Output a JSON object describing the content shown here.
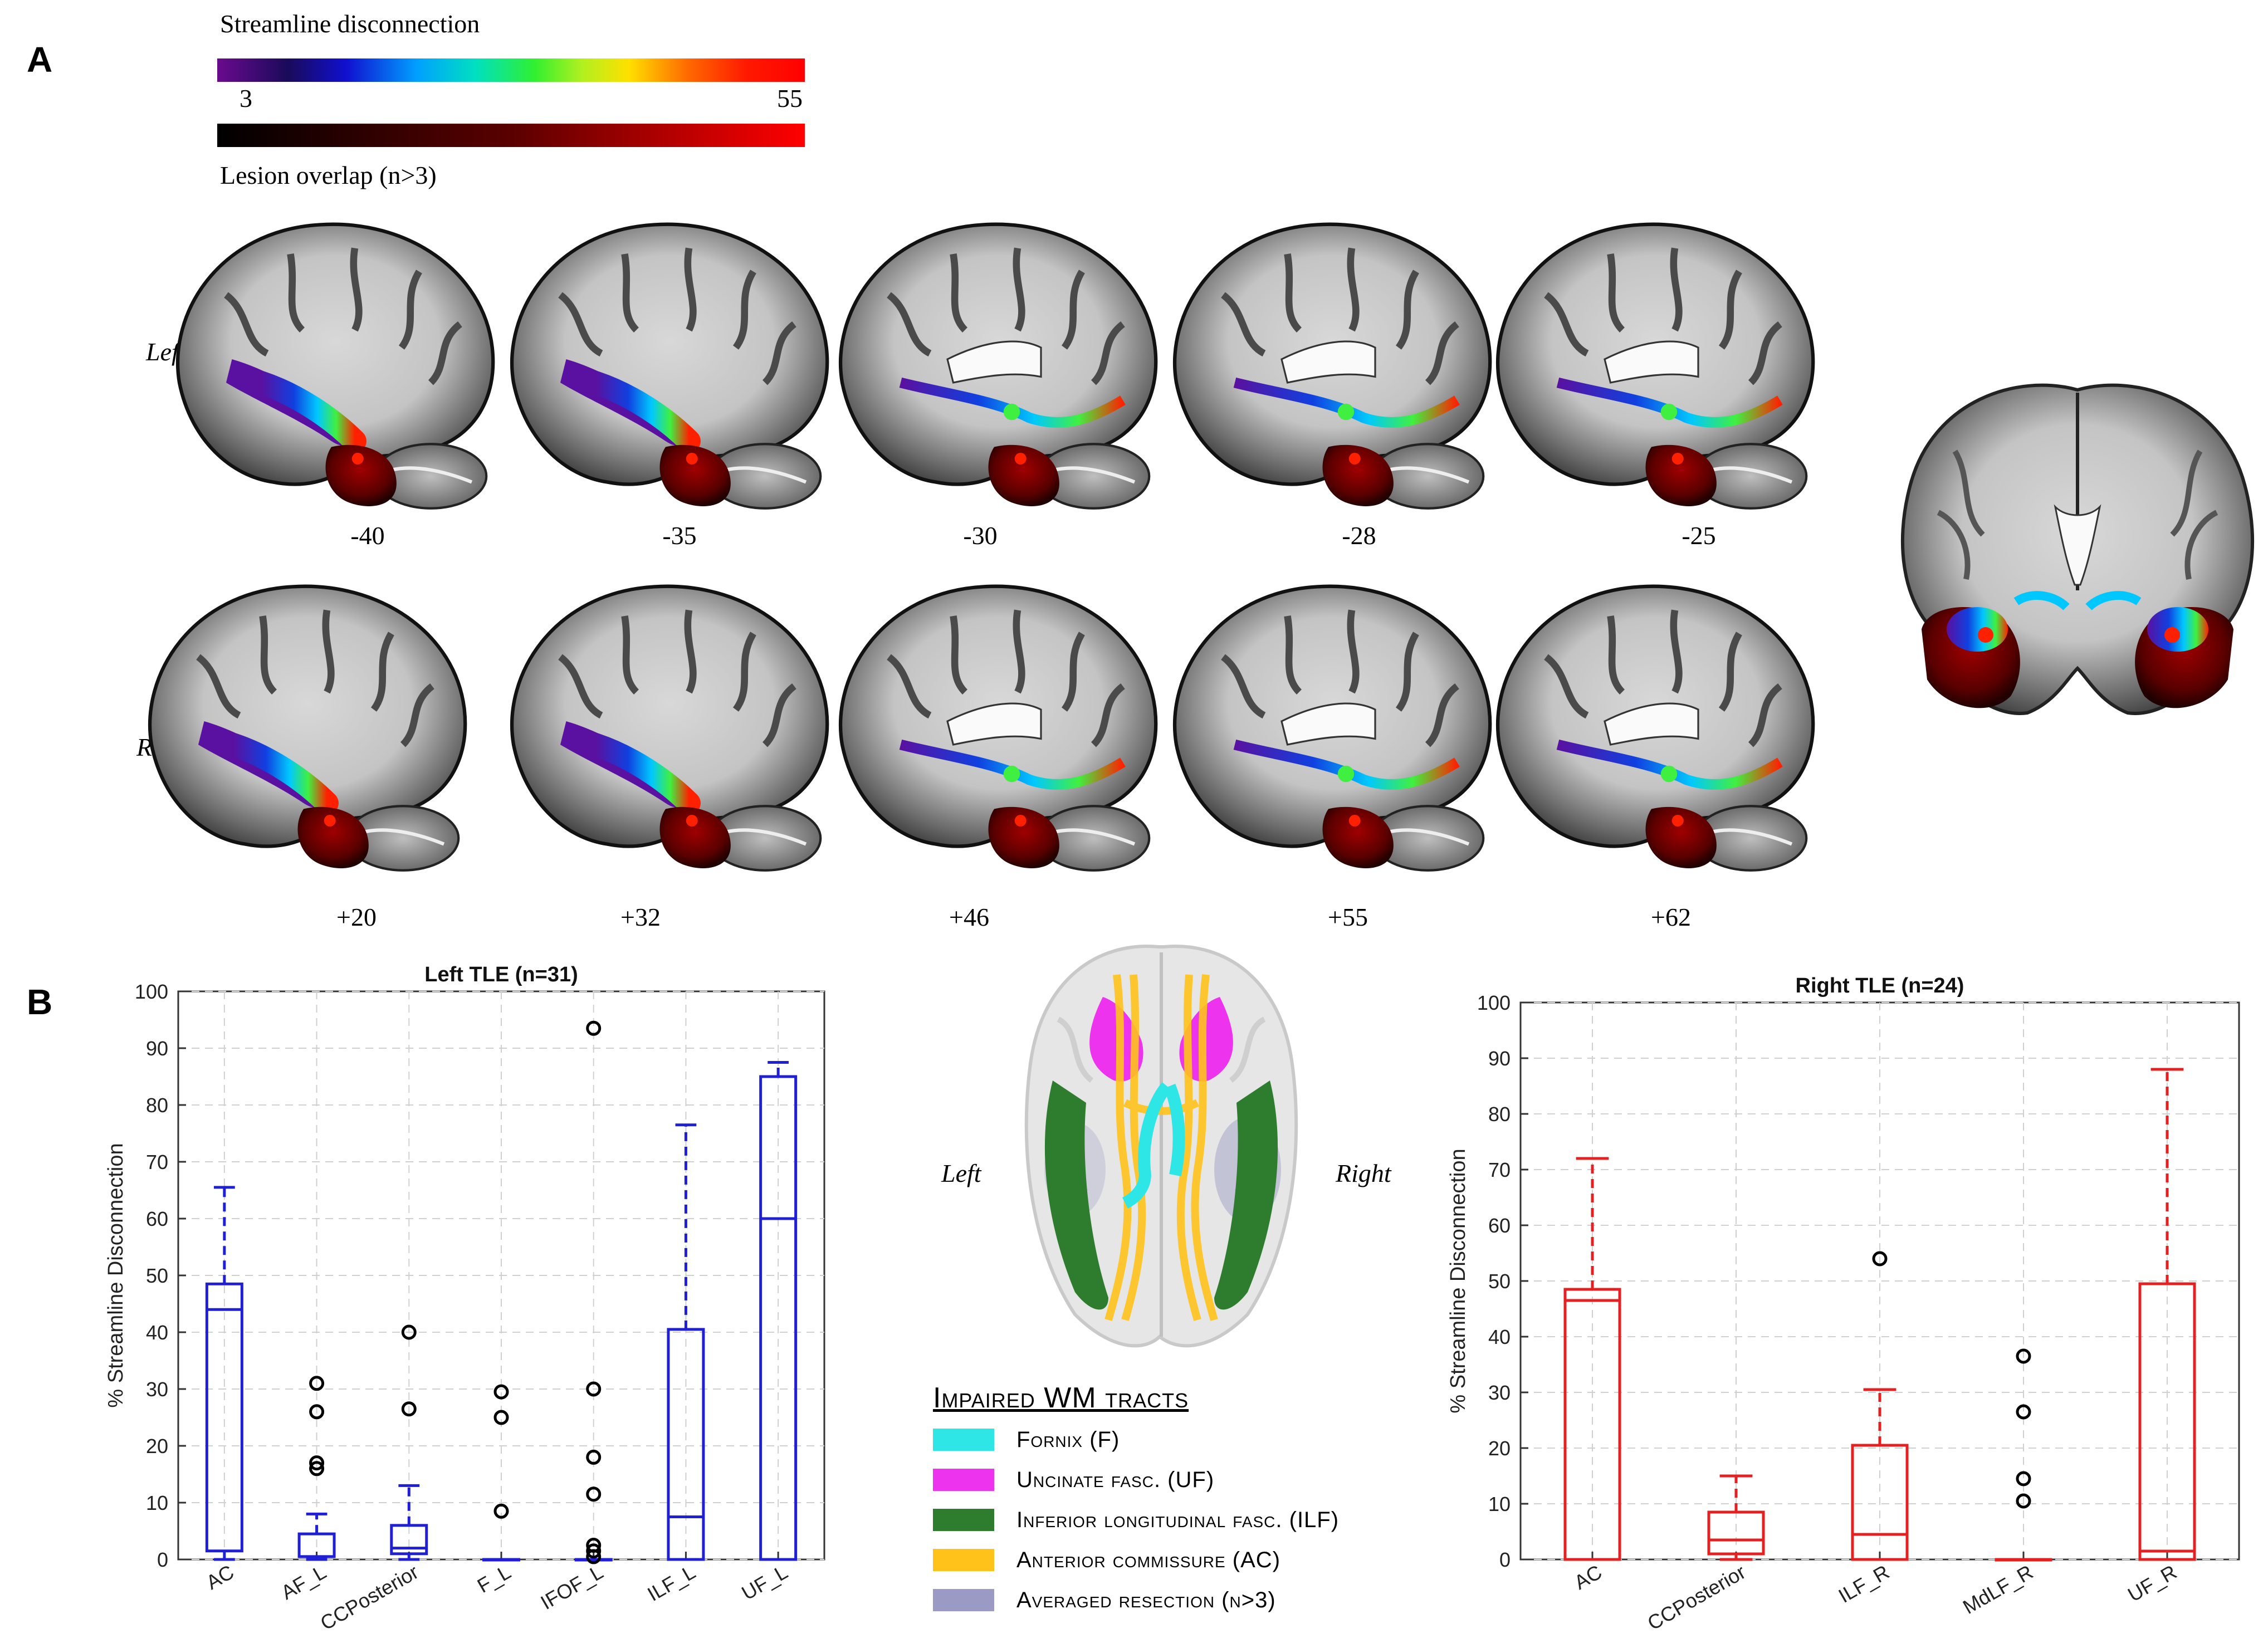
{
  "panel_a": {
    "letter": "A",
    "colorbar1_title": "Streamline disconnection",
    "colorbar1_min": "3",
    "colorbar1_max": "55",
    "colorbar2_title": "Lesion overlap (n>3)",
    "row_left_label": "Left",
    "row_right_label": "Right",
    "left_slices": [
      "-40",
      "-35",
      "-30",
      "-28",
      "-25"
    ],
    "right_slices": [
      "+20",
      "+32",
      "+46",
      "+55",
      "+62"
    ]
  },
  "panel_b": {
    "letter": "B",
    "brain_left_label": "Left",
    "brain_right_label": "Right",
    "legend_title": "Impaired WM tracts",
    "legend": [
      {
        "label": "Fornix (F)",
        "color": "#2ee6e6"
      },
      {
        "label": "Uncinate fasc. (UF)",
        "color": "#ee33ee"
      },
      {
        "label": "Inferior longitudinal fasc. (ILF)",
        "color": "#2e7d2e"
      },
      {
        "label": "Anterior commissure (AC)",
        "color": "#ffc21a"
      },
      {
        "label": "Averaged resection (n>3)",
        "color": "#9a9ac4"
      }
    ]
  },
  "chart_data": [
    {
      "type": "box",
      "title": "Left TLE (n=31)",
      "ylabel": "% Streamline Disconnection",
      "ylim": [
        0,
        100
      ],
      "yticks": [
        0,
        10,
        20,
        30,
        40,
        50,
        60,
        70,
        80,
        90,
        100
      ],
      "grid": true,
      "color": "#1f1fd6",
      "categories": [
        "AC",
        "AF_L",
        "CCPosterior",
        "F_L",
        "IFOF_L",
        "ILF_L",
        "UF_L"
      ],
      "boxes": [
        {
          "q1": 1.5,
          "median": 44,
          "q3": 48.5,
          "whisker_low": 0,
          "whisker_high": 65.5,
          "outliers": []
        },
        {
          "q1": 0.5,
          "median": 0.5,
          "q3": 4.5,
          "whisker_low": 0,
          "whisker_high": 8,
          "outliers": [
            16,
            17,
            26,
            31
          ]
        },
        {
          "q1": 1,
          "median": 2,
          "q3": 6,
          "whisker_low": 0,
          "whisker_high": 13,
          "outliers": [
            26.5,
            40
          ]
        },
        {
          "q1": 0,
          "median": 0,
          "q3": 0,
          "whisker_low": 0,
          "whisker_high": 0,
          "outliers": [
            8.5,
            25,
            29.5
          ]
        },
        {
          "q1": 0,
          "median": 0,
          "q3": 0,
          "whisker_low": 0,
          "whisker_high": 0,
          "outliers": [
            0.5,
            1.5,
            2.5,
            11.5,
            18,
            30,
            93.5
          ]
        },
        {
          "q1": 0,
          "median": 7.5,
          "q3": 40.5,
          "whisker_low": 0,
          "whisker_high": 76.5,
          "outliers": []
        },
        {
          "q1": 0,
          "median": 60,
          "q3": 85,
          "whisker_low": 0,
          "whisker_high": 87.5,
          "outliers": []
        }
      ]
    },
    {
      "type": "box",
      "title": "Right TLE (n=24)",
      "ylabel": "% Streamline Disconnection",
      "ylim": [
        0,
        100
      ],
      "yticks": [
        0,
        10,
        20,
        30,
        40,
        50,
        60,
        70,
        80,
        90,
        100
      ],
      "grid": true,
      "color": "#e62020",
      "categories": [
        "AC",
        "CCPosterior",
        "ILF_R",
        "MdLF_R",
        "UF_R"
      ],
      "boxes": [
        {
          "q1": 0,
          "median": 46.5,
          "q3": 48.5,
          "whisker_low": 0,
          "whisker_high": 72,
          "outliers": []
        },
        {
          "q1": 1,
          "median": 3.5,
          "q3": 8.5,
          "whisker_low": 0,
          "whisker_high": 15,
          "outliers": []
        },
        {
          "q1": 0,
          "median": 4.5,
          "q3": 20.5,
          "whisker_low": 0,
          "whisker_high": 30.5,
          "outliers": [
            54
          ]
        },
        {
          "q1": 0,
          "median": 0,
          "q3": 0,
          "whisker_low": 0,
          "whisker_high": 0,
          "outliers": [
            10.5,
            14.5,
            26.5,
            36.5
          ]
        },
        {
          "q1": 0,
          "median": 1.5,
          "q3": 49.5,
          "whisker_low": 0,
          "whisker_high": 88,
          "outliers": []
        }
      ]
    }
  ]
}
